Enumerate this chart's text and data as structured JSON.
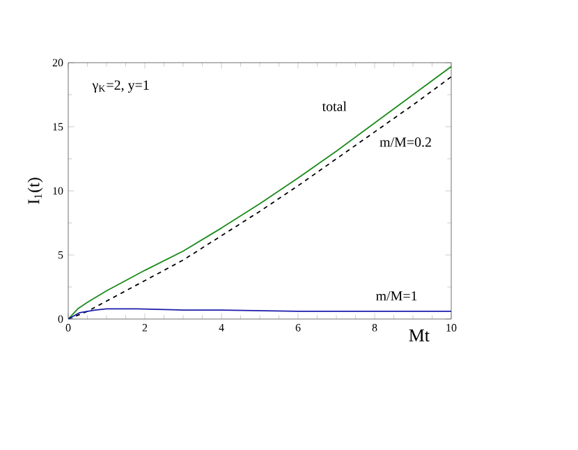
{
  "chart_data": {
    "type": "line",
    "xlabel": "Mt",
    "ylabel": "I$_{1}$(t)",
    "xlim": [
      0,
      10
    ],
    "ylim": [
      0,
      20
    ],
    "xticks": [
      0,
      2,
      4,
      6,
      8,
      10
    ],
    "yticks": [
      0,
      5,
      10,
      15,
      20
    ],
    "grid": false,
    "legend": false,
    "marker": "none",
    "annotations": [
      "γ$_{K}$=2, y=1"
    ],
    "series": [
      {
        "name": "total",
        "color": "#1a8a1a",
        "line_style": "solid",
        "x": [
          0,
          0.25,
          0.5,
          1,
          2,
          3,
          4,
          5,
          6,
          7,
          8,
          9,
          10
        ],
        "values": [
          0,
          0.8,
          1.3,
          2.2,
          3.8,
          5.3,
          7.1,
          9.0,
          11.0,
          13.1,
          15.3,
          17.5,
          19.7
        ]
      },
      {
        "name": "m/M=0.2",
        "color": "#000000",
        "line_style": "dashed",
        "x": [
          0,
          0.5,
          1,
          2,
          3,
          4,
          5,
          6,
          7,
          8,
          9,
          10
        ],
        "values": [
          0,
          0.6,
          1.4,
          3.0,
          4.6,
          6.5,
          8.4,
          10.4,
          12.5,
          14.6,
          16.7,
          18.9
        ]
      },
      {
        "name": "m/M=1",
        "color": "#1a1aaa",
        "line_style": "solid",
        "x": [
          0,
          0.3,
          0.7,
          1,
          1.8,
          3,
          4,
          6,
          8,
          10
        ],
        "values": [
          0,
          0.5,
          0.7,
          0.8,
          0.8,
          0.7,
          0.7,
          0.6,
          0.6,
          0.6
        ]
      }
    ]
  }
}
